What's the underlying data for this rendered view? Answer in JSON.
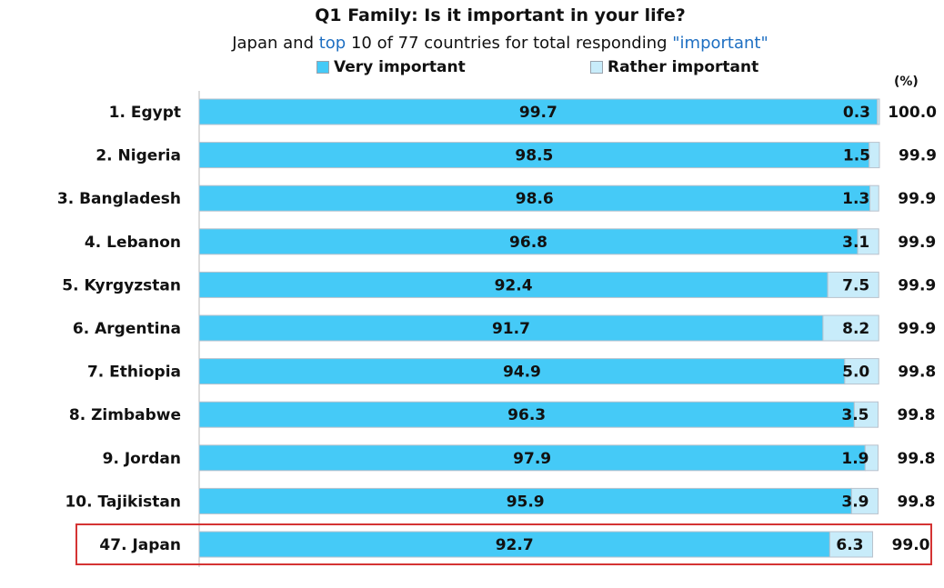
{
  "title": "Q1 Family: Is it important in your life?",
  "subtitle": {
    "part1": "Japan and ",
    "part2": "top",
    "part3": " 10 of 77 countries for total responding ",
    "part4": "\"important\""
  },
  "unit": "(%)",
  "colors": {
    "very": "#45caf7",
    "rather": "#c8ecfa",
    "accent": "#1e6fc2",
    "highlight_border": "#d43333"
  },
  "chart_data": {
    "type": "bar",
    "orientation": "horizontal",
    "stacked": true,
    "categories": [
      "1. Egypt",
      "2. Nigeria",
      "3. Bangladesh",
      "4. Lebanon",
      "5. Kyrgyzstan",
      "6. Argentina",
      "7. Ethiopia",
      "8. Zimbabwe",
      "9. Jordan",
      "10. Tajikistan",
      "47. Japan"
    ],
    "series": [
      {
        "name": "Very important",
        "values": [
          99.7,
          98.5,
          98.6,
          96.8,
          92.4,
          91.7,
          94.9,
          96.3,
          97.9,
          95.9,
          92.7
        ]
      },
      {
        "name": "Rather important",
        "values": [
          0.3,
          1.5,
          1.3,
          3.1,
          7.5,
          8.2,
          5.0,
          3.5,
          1.9,
          3.9,
          6.3
        ]
      }
    ],
    "totals": [
      "100.0",
      "99.9",
      "99.9",
      "99.9",
      "99.9",
      "99.9",
      "99.8",
      "99.8",
      "99.8",
      "99.8",
      "99.0"
    ],
    "value_labels_very": [
      "99.7",
      "98.5",
      "98.6",
      "96.8",
      "92.4",
      "91.7",
      "94.9",
      "96.3",
      "97.9",
      "95.9",
      "92.7"
    ],
    "value_labels_rather": [
      "0.3",
      "1.5",
      "1.3",
      "3.1",
      "7.5",
      "8.2",
      "5.0",
      "3.5",
      "1.9",
      "3.9",
      "6.3"
    ],
    "xlim": [
      0,
      100
    ],
    "grid": false,
    "legend_position": "top",
    "highlighted_category": "47. Japan"
  }
}
